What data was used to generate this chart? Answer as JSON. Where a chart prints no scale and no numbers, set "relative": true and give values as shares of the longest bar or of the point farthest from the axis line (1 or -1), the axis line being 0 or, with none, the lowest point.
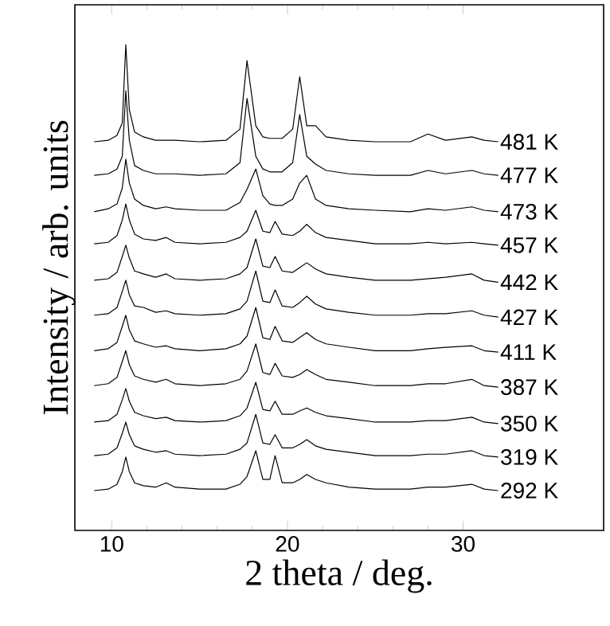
{
  "chart_data": {
    "type": "line",
    "relative": true,
    "xlabel": "2 theta / deg.",
    "ylabel": "Intensity / arb. units",
    "xlim": [
      7.9,
      38
    ],
    "xticks": [
      10,
      20,
      30
    ],
    "x": [
      9,
      9.8,
      10.3,
      10.6,
      10.8,
      11.0,
      11.3,
      11.8,
      12.5,
      13.1,
      13.6,
      15,
      16.5,
      17.3,
      17.7,
      18.2,
      18.6,
      19.0,
      19.3,
      19.7,
      20.3,
      20.7,
      21.1,
      21.6,
      22.2,
      23.5,
      25,
      27,
      28,
      29,
      30.5,
      31.2,
      32
    ],
    "series": [
      {
        "name": "481 K",
        "color": "#000000",
        "values": [
          0.8,
          0.803,
          0.813,
          0.839,
          1,
          0.866,
          0.82,
          0.81,
          0.803,
          0.803,
          0.803,
          0.8,
          0.803,
          0.826,
          0.967,
          0.833,
          0.81,
          0.807,
          0.807,
          0.807,
          0.826,
          0.934,
          0.833,
          0.833,
          0.81,
          0.803,
          0.8,
          0.8,
          0.816,
          0.803,
          0.81,
          0.803,
          0.8
        ]
      },
      {
        "name": "477 K",
        "color": "#000000",
        "values": [
          0.731,
          0.734,
          0.744,
          0.77,
          0.905,
          0.803,
          0.751,
          0.741,
          0.734,
          0.734,
          0.734,
          0.731,
          0.734,
          0.757,
          0.889,
          0.77,
          0.744,
          0.738,
          0.738,
          0.738,
          0.757,
          0.856,
          0.77,
          0.754,
          0.741,
          0.734,
          0.731,
          0.731,
          0.741,
          0.734,
          0.741,
          0.734,
          0.731
        ]
      },
      {
        "name": "473 K",
        "color": "#000000",
        "values": [
          0.656,
          0.662,
          0.672,
          0.705,
          0.764,
          0.715,
          0.682,
          0.669,
          0.662,
          0.666,
          0.662,
          0.659,
          0.659,
          0.675,
          0.702,
          0.744,
          0.689,
          0.672,
          0.669,
          0.669,
          0.682,
          0.715,
          0.731,
          0.682,
          0.669,
          0.662,
          0.659,
          0.656,
          0.662,
          0.659,
          0.666,
          0.659,
          0.656
        ]
      },
      {
        "name": "457 K",
        "color": "#000000",
        "values": [
          0.59,
          0.593,
          0.607,
          0.639,
          0.672,
          0.639,
          0.61,
          0.6,
          0.597,
          0.603,
          0.593,
          0.59,
          0.593,
          0.603,
          0.616,
          0.659,
          0.616,
          0.613,
          0.636,
          0.61,
          0.607,
          0.616,
          0.63,
          0.613,
          0.603,
          0.597,
          0.59,
          0.59,
          0.593,
          0.59,
          0.593,
          0.59,
          0.587
        ]
      },
      {
        "name": "442 K",
        "color": "#000000",
        "values": [
          0.515,
          0.518,
          0.531,
          0.564,
          0.587,
          0.561,
          0.534,
          0.528,
          0.521,
          0.528,
          0.518,
          0.515,
          0.518,
          0.528,
          0.541,
          0.6,
          0.544,
          0.541,
          0.564,
          0.534,
          0.531,
          0.541,
          0.551,
          0.538,
          0.528,
          0.521,
          0.515,
          0.515,
          0.518,
          0.521,
          0.528,
          0.515,
          0.511
        ]
      },
      {
        "name": "427 K",
        "color": "#000000",
        "values": [
          0.443,
          0.446,
          0.459,
          0.492,
          0.515,
          0.485,
          0.462,
          0.459,
          0.449,
          0.452,
          0.446,
          0.443,
          0.446,
          0.456,
          0.472,
          0.534,
          0.472,
          0.469,
          0.495,
          0.462,
          0.459,
          0.469,
          0.482,
          0.466,
          0.456,
          0.449,
          0.443,
          0.443,
          0.446,
          0.446,
          0.452,
          0.443,
          0.439
        ]
      },
      {
        "name": "411 K",
        "color": "#000000",
        "values": [
          0.37,
          0.374,
          0.387,
          0.42,
          0.443,
          0.413,
          0.39,
          0.384,
          0.377,
          0.38,
          0.374,
          0.37,
          0.374,
          0.384,
          0.4,
          0.459,
          0.397,
          0.393,
          0.42,
          0.39,
          0.387,
          0.397,
          0.407,
          0.393,
          0.384,
          0.377,
          0.37,
          0.37,
          0.374,
          0.377,
          0.38,
          0.37,
          0.367
        ]
      },
      {
        "name": "387 K",
        "color": "#000000",
        "values": [
          0.298,
          0.302,
          0.315,
          0.348,
          0.37,
          0.341,
          0.318,
          0.311,
          0.305,
          0.311,
          0.302,
          0.298,
          0.302,
          0.311,
          0.328,
          0.384,
          0.325,
          0.321,
          0.344,
          0.318,
          0.315,
          0.321,
          0.331,
          0.321,
          0.311,
          0.305,
          0.298,
          0.298,
          0.302,
          0.302,
          0.311,
          0.298,
          0.295
        ]
      },
      {
        "name": "350 K",
        "color": "#000000",
        "values": [
          0.223,
          0.226,
          0.239,
          0.269,
          0.292,
          0.266,
          0.243,
          0.236,
          0.23,
          0.233,
          0.226,
          0.223,
          0.226,
          0.236,
          0.252,
          0.305,
          0.249,
          0.246,
          0.266,
          0.239,
          0.239,
          0.246,
          0.252,
          0.243,
          0.236,
          0.23,
          0.223,
          0.223,
          0.226,
          0.226,
          0.233,
          0.223,
          0.22
        ]
      },
      {
        "name": "319 K",
        "color": "#000000",
        "values": [
          0.154,
          0.157,
          0.17,
          0.2,
          0.223,
          0.197,
          0.174,
          0.167,
          0.161,
          0.164,
          0.157,
          0.154,
          0.157,
          0.167,
          0.18,
          0.239,
          0.18,
          0.177,
          0.197,
          0.17,
          0.17,
          0.177,
          0.187,
          0.174,
          0.167,
          0.161,
          0.154,
          0.154,
          0.157,
          0.157,
          0.164,
          0.154,
          0.151
        ]
      },
      {
        "name": "292 K",
        "color": "#000000",
        "values": [
          0.082,
          0.085,
          0.095,
          0.121,
          0.151,
          0.121,
          0.098,
          0.092,
          0.089,
          0.098,
          0.089,
          0.085,
          0.085,
          0.095,
          0.111,
          0.164,
          0.105,
          0.105,
          0.154,
          0.098,
          0.098,
          0.105,
          0.115,
          0.105,
          0.098,
          0.089,
          0.085,
          0.085,
          0.089,
          0.089,
          0.095,
          0.085,
          0.082
        ]
      }
    ]
  }
}
